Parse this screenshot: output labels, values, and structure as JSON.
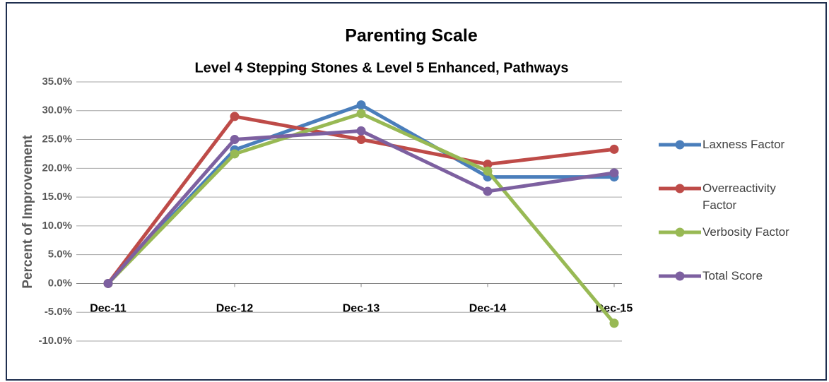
{
  "chart_data": {
    "type": "line",
    "title": "Parenting Scale",
    "subtitle": "Level 4 Stepping Stones & Level 5 Enhanced, Pathways",
    "y_label": "Percent of Improvement",
    "categories": [
      "Dec-11",
      "Dec-12",
      "Dec-13",
      "Dec-14",
      "Dec-15"
    ],
    "series": [
      {
        "name": "Laxness Factor",
        "color": "#4a7ebb",
        "values": [
          0,
          23.2,
          31,
          18.5,
          18.5
        ]
      },
      {
        "name": "Overreactivity Factor",
        "color": "#be4b48",
        "values": [
          0,
          29,
          25,
          20.7,
          23.3
        ]
      },
      {
        "name": "Verbosity Factor",
        "color": "#98b954",
        "values": [
          0,
          22.5,
          29.5,
          19.5,
          -6.9
        ]
      },
      {
        "name": "Total Score",
        "color": "#7d60a0",
        "values": [
          0,
          25,
          26.5,
          16,
          19.2
        ]
      }
    ],
    "ylim": [
      -10,
      35
    ],
    "yticks": [
      {
        "value": -10,
        "label": "-10.0%"
      },
      {
        "value": -5,
        "label": "-5.0%"
      },
      {
        "value": 0,
        "label": "0.0%"
      },
      {
        "value": 5,
        "label": "5.0%"
      },
      {
        "value": 10,
        "label": "10.0%"
      },
      {
        "value": 15,
        "label": "15.0%"
      },
      {
        "value": 20,
        "label": "20.0%"
      },
      {
        "value": 25,
        "label": "25.0%"
      },
      {
        "value": 30,
        "label": "30.0%"
      },
      {
        "value": 35,
        "label": "35.0%"
      }
    ],
    "grid": true,
    "legend": "right"
  }
}
